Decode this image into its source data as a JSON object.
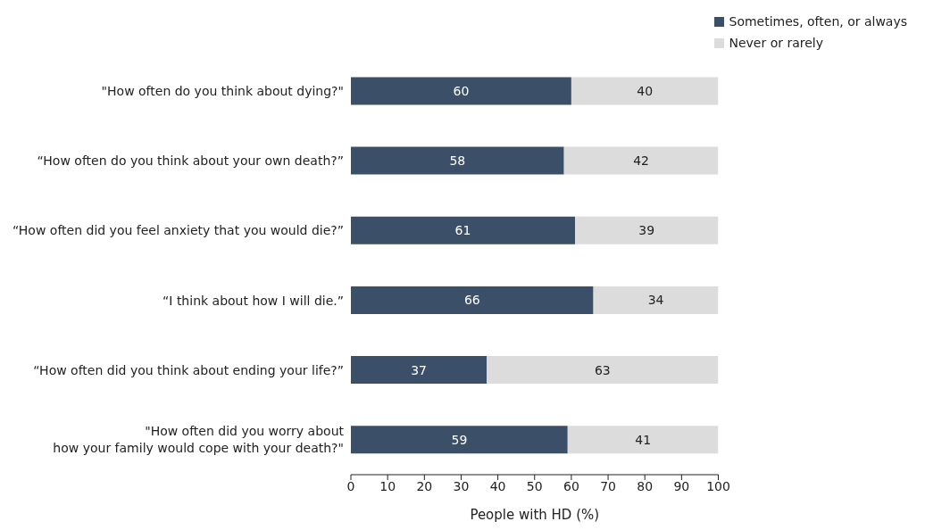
{
  "chart_data": {
    "type": "bar",
    "orientation": "horizontal",
    "stacked": true,
    "categories": [
      "\"How often do you think about dying?\"",
      "“How often do you think about your own death?”",
      "“How often did you feel anxiety that you would die?”",
      "“I think about how I will die.”",
      "“How often did you think about ending your life?”",
      "\"How often did you worry about\nhow your family would cope with your death?\""
    ],
    "series": [
      {
        "name": "Sometimes, often, or always",
        "color": "#3b5068",
        "values": [
          60,
          58,
          61,
          66,
          37,
          59
        ]
      },
      {
        "name": "Never or rarely",
        "color": "#dcdcdc",
        "values": [
          40,
          42,
          39,
          34,
          63,
          41
        ]
      }
    ],
    "xlabel": "People with HD (%)",
    "xlim": [
      0,
      100
    ],
    "xticks": [
      0,
      10,
      20,
      30,
      40,
      50,
      60,
      70,
      80,
      90,
      100
    ],
    "data_labels": true,
    "legend": "top right",
    "grid": false
  }
}
